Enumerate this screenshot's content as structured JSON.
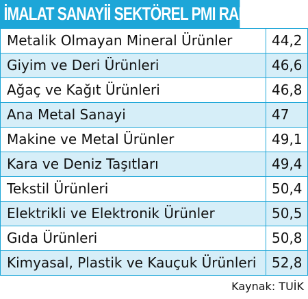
{
  "chart_data": {
    "type": "table",
    "title": "İMALAT SANAYİİ SEKTÖREL PMI RAKAMLARI",
    "rows": [
      {
        "label": "Metalik Olmayan Mineral Ürünler",
        "value": "44,2"
      },
      {
        "label": "Giyim ve Deri Ürünleri",
        "value": "46,6"
      },
      {
        "label": "Ağaç ve Kağıt Ürünleri",
        "value": "46,8"
      },
      {
        "label": "Ana Metal Sanayi",
        "value": "47"
      },
      {
        "label": "Makine ve Metal Ürünler",
        "value": "49,1"
      },
      {
        "label": "Kara ve Deniz Taşıtları",
        "value": "49,4"
      },
      {
        "label": "Tekstil Ürünleri",
        "value": "50,4"
      },
      {
        "label": "Elektrikli ve Elektronik Ürünler",
        "value": "50,5"
      },
      {
        "label": "Gıda Ürünleri",
        "value": "50,8"
      },
      {
        "label": "Kimyasal, Plastik ve Kauçuk Ürünleri",
        "value": "52,8"
      }
    ],
    "source": "Kaynak: TUİK"
  },
  "colors": {
    "accent": "#1da6d8",
    "stripe": "#d6eef8"
  }
}
